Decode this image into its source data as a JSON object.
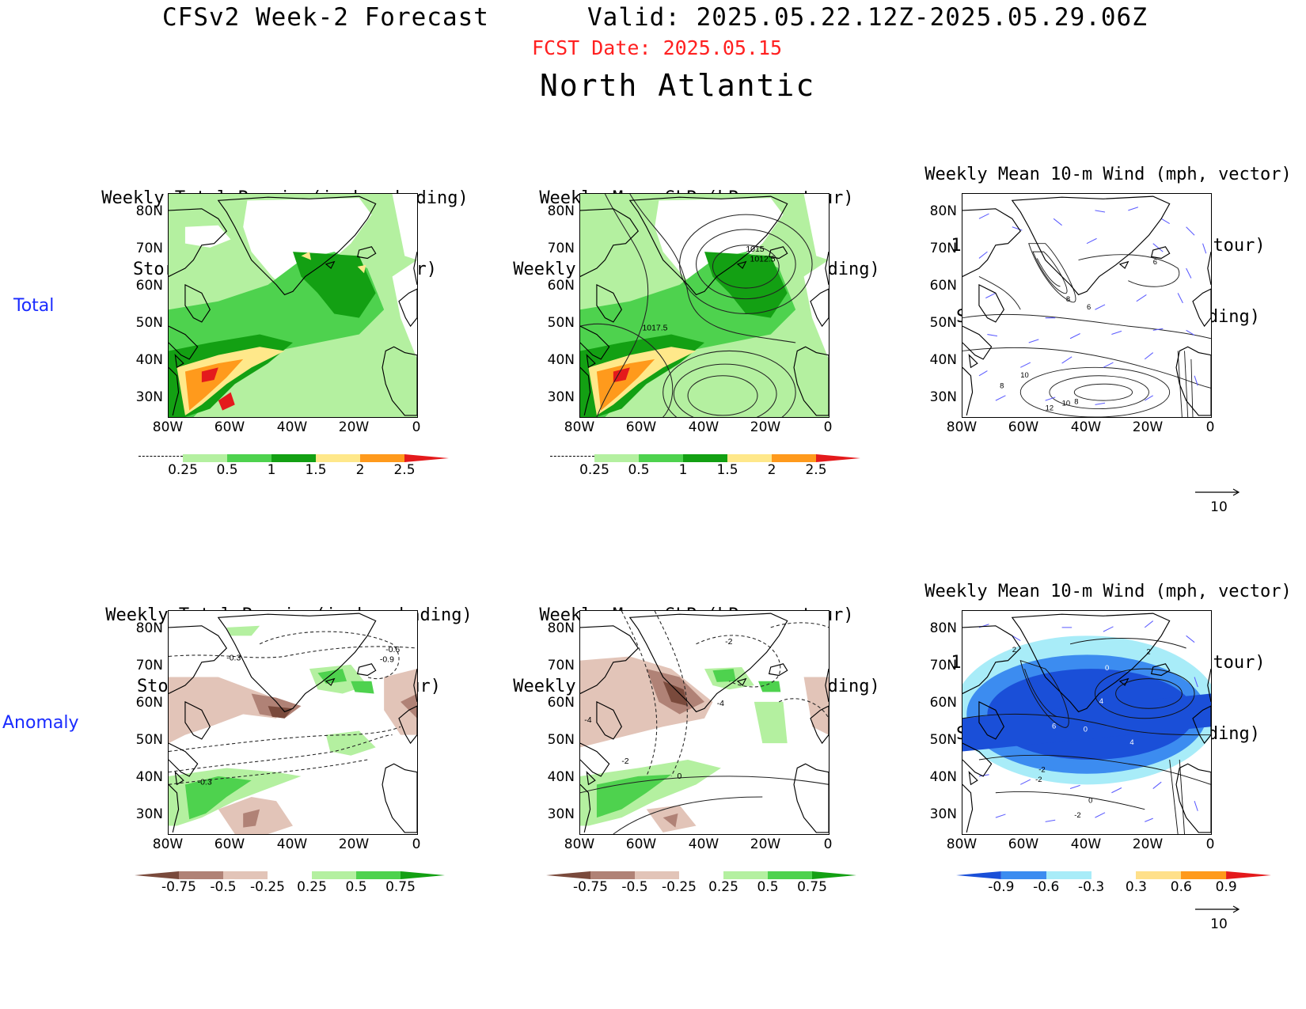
{
  "header": {
    "title": "CFSv2 Week-2 Forecast",
    "valid": "Valid: 2025.05.22.12Z-2025.05.29.06Z",
    "fcst_date": "FCST Date: 2025.05.15",
    "region": "North Atlantic"
  },
  "rows": {
    "total": "Total",
    "anomaly": "Anomaly"
  },
  "panels": {
    "p1": {
      "title1": "Weekly Total Precip (inch, shading)",
      "title2": "Storm Track Density (contour)"
    },
    "p2": {
      "title1": "Weekly Mean SLP (hPa, contour)",
      "title2": "Weekly Total Precip (inch, shading)",
      "contour_labels": [
        "1015",
        "1012.5",
        "1017.5"
      ]
    },
    "p3": {
      "title1": "Weekly Mean 10-m Wind (mph, vector)",
      "title2": "10-m Wind Speed (mph, contour)",
      "title3": "Storm Track Density (shading)",
      "contour_labels": [
        "8",
        "6",
        "6",
        "10",
        "8",
        "12",
        "10",
        "8"
      ]
    },
    "p4": {
      "title1": "Weekly Total Precip (inch, shading)",
      "title2": "Storm Track Density (contour)",
      "contour_labels": [
        "-0.3",
        "-0.6",
        "-0.9",
        "-0.3"
      ]
    },
    "p5": {
      "title1": "Weekly Mean SLP (hPa, contour)",
      "title2": "Weekly Total Precip (inch, shading)",
      "contour_labels": [
        "-2",
        "-4",
        "-4",
        "-2",
        "0"
      ]
    },
    "p6": {
      "title1": "Weekly Mean 10-m Wind (mph, vector)",
      "title2": "10-m Wind Speed (mph, contour)",
      "title3": "Storm Track Density (shading)",
      "contour_labels": [
        "2",
        "2",
        "0",
        "4",
        "6",
        "0",
        "4",
        "-2",
        "-2",
        "0",
        "-2"
      ]
    }
  },
  "axes": {
    "lat": [
      "80N",
      "70N",
      "60N",
      "50N",
      "40N",
      "30N"
    ],
    "lon": [
      "80W",
      "60W",
      "40W",
      "20W",
      "0"
    ]
  },
  "colorbars": {
    "precip_total": {
      "labels": [
        "0.25",
        "0.5",
        "1",
        "1.5",
        "2",
        "2.5"
      ],
      "colors": [
        "#ffffff",
        "#b4f0a0",
        "#4ed24e",
        "#13a013",
        "#ffe88a",
        "#ff9a1c",
        "#e41a1c"
      ]
    },
    "precip_anom": {
      "labels": [
        "-0.75",
        "-0.5",
        "-0.25",
        "0.25",
        "0.5",
        "0.75"
      ],
      "colors": [
        "#7a4a3c",
        "#b08276",
        "#e2c4b8",
        "#ffffff",
        "#b4f0a0",
        "#4ed24e",
        "#13a013"
      ]
    },
    "track_anom": {
      "labels": [
        "-0.9",
        "-0.6",
        "-0.3",
        "0.3",
        "0.6",
        "0.9"
      ],
      "colors": [
        "#1a4fd8",
        "#3c8cf0",
        "#a8ecf8",
        "#ffffff",
        "#ffe08a",
        "#ff9a1c",
        "#e41a1c"
      ]
    }
  },
  "vector_key": {
    "label": "10"
  },
  "colors": {
    "fcst_red": "#ff2020",
    "row_label_blue": "#1a2bff",
    "vector_blue": "#5a5aff"
  }
}
